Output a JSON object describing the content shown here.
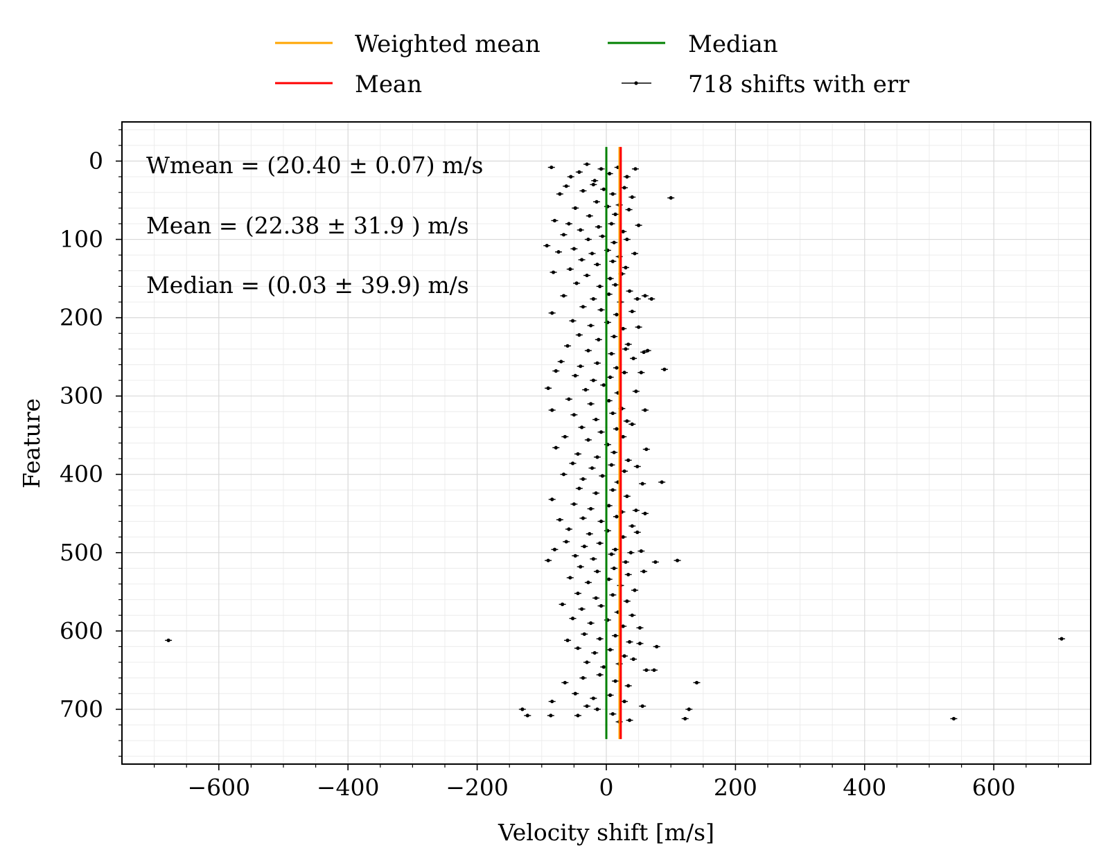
{
  "chart_data": {
    "type": "scatter",
    "xlabel": "Velocity shift [m/s]",
    "ylabel": "Feature",
    "xlim": [
      -750,
      750
    ],
    "ylim": [
      770,
      -50
    ],
    "y_inverted": true,
    "xticks": [
      -600,
      -400,
      -200,
      0,
      200,
      400,
      600
    ],
    "xtick_labels": [
      "−600",
      "−400",
      "−200",
      "0",
      "200",
      "400",
      "600"
    ],
    "yticks": [
      0,
      100,
      200,
      300,
      400,
      500,
      600,
      700
    ],
    "ytick_labels": [
      "0",
      "100",
      "200",
      "300",
      "400",
      "500",
      "600",
      "700"
    ],
    "grid": true,
    "legend_position": "top-center",
    "legend": [
      {
        "label": "Weighted mean",
        "color": "#ffa500",
        "kind": "line"
      },
      {
        "label": "Median",
        "color": "#008000",
        "kind": "line"
      },
      {
        "label": "Mean",
        "color": "#ff0000",
        "kind": "line"
      },
      {
        "label": "718 shifts with err",
        "color": "#000000",
        "kind": "errorbar"
      }
    ],
    "annotations": [
      "Wmean = (20.40 ± 0.07) m/s",
      "Mean = (22.38 ± 31.9 ) m/s",
      "Median = (0.03 ± 39.9) m/s"
    ],
    "lines": [
      {
        "name": "Weighted mean",
        "x": 20.4,
        "y_range": [
          -18,
          738
        ],
        "color": "#ffa500"
      },
      {
        "name": "Mean",
        "x": 22.38,
        "y_range": [
          -18,
          738
        ],
        "color": "#ff0000"
      },
      {
        "name": "Median",
        "x": 0.03,
        "y_range": [
          -18,
          738
        ],
        "color": "#008000"
      }
    ],
    "series": [
      {
        "name": "718 shifts with err",
        "points": [
          [
            -85,
            8
          ],
          [
            -55,
            20
          ],
          [
            -42,
            14
          ],
          [
            -30,
            4
          ],
          [
            -18,
            25
          ],
          [
            -8,
            10
          ],
          [
            5,
            16
          ],
          [
            18,
            8
          ],
          [
            32,
            20
          ],
          [
            45,
            10
          ],
          [
            -62,
            32
          ],
          [
            -36,
            38
          ],
          [
            -20,
            30
          ],
          [
            -4,
            36
          ],
          [
            10,
            42
          ],
          [
            28,
            34
          ],
          [
            40,
            46
          ],
          [
            -72,
            42
          ],
          [
            100,
            47
          ],
          [
            -15,
            52
          ],
          [
            2,
            58
          ],
          [
            20,
            56
          ],
          [
            -48,
            60
          ],
          [
            35,
            62
          ],
          [
            -26,
            70
          ],
          [
            14,
            68
          ],
          [
            -80,
            76
          ],
          [
            -58,
            80
          ],
          [
            -40,
            88
          ],
          [
            -12,
            84
          ],
          [
            8,
            80
          ],
          [
            26,
            90
          ],
          [
            50,
            82
          ],
          [
            -66,
            94
          ],
          [
            -28,
            100
          ],
          [
            -6,
            96
          ],
          [
            12,
            104
          ],
          [
            32,
            100
          ],
          [
            -92,
            108
          ],
          [
            -50,
            112
          ],
          [
            -22,
            118
          ],
          [
            2,
            114
          ],
          [
            20,
            122
          ],
          [
            44,
            118
          ],
          [
            -74,
            116
          ],
          [
            -38,
            126
          ],
          [
            -14,
            132
          ],
          [
            10,
            128
          ],
          [
            30,
            136
          ],
          [
            -56,
            138
          ],
          [
            -82,
            142
          ],
          [
            -30,
            146
          ],
          [
            6,
            150
          ],
          [
            24,
            144
          ],
          [
            -46,
            156
          ],
          [
            -10,
            160
          ],
          [
            14,
            158
          ],
          [
            36,
            166
          ],
          [
            -66,
            172
          ],
          [
            -20,
            176
          ],
          [
            4,
            170
          ],
          [
            22,
            180
          ],
          [
            48,
            176
          ],
          [
            60,
            172
          ],
          [
            70,
            176
          ],
          [
            -84,
            194
          ],
          [
            -36,
            186
          ],
          [
            -8,
            190
          ],
          [
            16,
            196
          ],
          [
            40,
            192
          ],
          [
            -52,
            204
          ],
          [
            -24,
            210
          ],
          [
            2,
            206
          ],
          [
            26,
            214
          ],
          [
            50,
            212
          ],
          [
            -42,
            222
          ],
          [
            -12,
            228
          ],
          [
            12,
            224
          ],
          [
            34,
            234
          ],
          [
            -60,
            236
          ],
          [
            -28,
            242
          ],
          [
            8,
            246
          ],
          [
            30,
            240
          ],
          [
            58,
            244
          ],
          [
            64,
            242
          ],
          [
            -70,
            256
          ],
          [
            -40,
            262
          ],
          [
            -14,
            258
          ],
          [
            16,
            264
          ],
          [
            42,
            252
          ],
          [
            -78,
            268
          ],
          [
            -48,
            274
          ],
          [
            -20,
            280
          ],
          [
            6,
            276
          ],
          [
            28,
            270
          ],
          [
            54,
            270
          ],
          [
            90,
            266
          ],
          [
            -90,
            290
          ],
          [
            -32,
            292
          ],
          [
            -4,
            286
          ],
          [
            18,
            296
          ],
          [
            46,
            294
          ],
          [
            -58,
            304
          ],
          [
            -24,
            310
          ],
          [
            4,
            306
          ],
          [
            24,
            316
          ],
          [
            -84,
            318
          ],
          [
            -50,
            324
          ],
          [
            -16,
            330
          ],
          [
            10,
            322
          ],
          [
            32,
            332
          ],
          [
            60,
            318
          ],
          [
            -38,
            340
          ],
          [
            -8,
            346
          ],
          [
            16,
            342
          ],
          [
            40,
            336
          ],
          [
            -64,
            352
          ],
          [
            -28,
            356
          ],
          [
            2,
            362
          ],
          [
            26,
            352
          ],
          [
            -78,
            366
          ],
          [
            -44,
            374
          ],
          [
            -14,
            378
          ],
          [
            12,
            372
          ],
          [
            34,
            382
          ],
          [
            62,
            368
          ],
          [
            -52,
            386
          ],
          [
            -22,
            392
          ],
          [
            8,
            388
          ],
          [
            28,
            396
          ],
          [
            48,
            390
          ],
          [
            -66,
            400
          ],
          [
            -36,
            406
          ],
          [
            -6,
            402
          ],
          [
            18,
            410
          ],
          [
            86,
            410
          ],
          [
            -42,
            418
          ],
          [
            -16,
            424
          ],
          [
            10,
            420
          ],
          [
            32,
            428
          ],
          [
            56,
            412
          ],
          [
            -84,
            432
          ],
          [
            -50,
            438
          ],
          [
            -24,
            444
          ],
          [
            4,
            440
          ],
          [
            24,
            448
          ],
          [
            46,
            446
          ],
          [
            -36,
            456
          ],
          [
            -8,
            460
          ],
          [
            16,
            454
          ],
          [
            40,
            466
          ],
          [
            60,
            450
          ],
          [
            -72,
            458
          ],
          [
            -58,
            470
          ],
          [
            -26,
            476
          ],
          [
            2,
            472
          ],
          [
            26,
            480
          ],
          [
            48,
            474
          ],
          [
            -62,
            486
          ],
          [
            -34,
            492
          ],
          [
            -10,
            488
          ],
          [
            14,
            496
          ],
          [
            38,
            500
          ],
          [
            -80,
            496
          ],
          [
            -48,
            504
          ],
          [
            -20,
            508
          ],
          [
            8,
            502
          ],
          [
            30,
            512
          ],
          [
            54,
            498
          ],
          [
            -90,
            510
          ],
          [
            -40,
            518
          ],
          [
            -14,
            524
          ],
          [
            12,
            520
          ],
          [
            34,
            528
          ],
          [
            58,
            524
          ],
          [
            76,
            512
          ],
          [
            110,
            510
          ],
          [
            -56,
            532
          ],
          [
            -28,
            538
          ],
          [
            4,
            534
          ],
          [
            22,
            542
          ],
          [
            44,
            548
          ],
          [
            -44,
            552
          ],
          [
            -16,
            558
          ],
          [
            10,
            554
          ],
          [
            32,
            562
          ],
          [
            -68,
            566
          ],
          [
            -38,
            572
          ],
          [
            -8,
            568
          ],
          [
            18,
            576
          ],
          [
            40,
            580
          ],
          [
            -52,
            584
          ],
          [
            -24,
            590
          ],
          [
            2,
            586
          ],
          [
            26,
            594
          ],
          [
            52,
            596
          ],
          [
            -34,
            604
          ],
          [
            -10,
            610
          ],
          [
            14,
            606
          ],
          [
            36,
            614
          ],
          [
            -60,
            612
          ],
          [
            -44,
            622
          ],
          [
            -18,
            628
          ],
          [
            6,
            624
          ],
          [
            28,
            632
          ],
          [
            52,
            616
          ],
          [
            78,
            620
          ],
          [
            -30,
            640
          ],
          [
            -4,
            646
          ],
          [
            20,
            642
          ],
          [
            42,
            636
          ],
          [
            62,
            650
          ],
          [
            74,
            650
          ],
          [
            -64,
            666
          ],
          [
            -36,
            660
          ],
          [
            -10,
            656
          ],
          [
            14,
            664
          ],
          [
            34,
            670
          ],
          [
            140,
            666
          ],
          [
            -48,
            680
          ],
          [
            -20,
            686
          ],
          [
            6,
            682
          ],
          [
            28,
            690
          ],
          [
            -84,
            690
          ],
          [
            -130,
            700
          ],
          [
            -122,
            708
          ],
          [
            -86,
            708
          ],
          [
            -44,
            708
          ],
          [
            -14,
            700
          ],
          [
            10,
            706
          ],
          [
            36,
            714
          ],
          [
            56,
            696
          ],
          [
            128,
            700
          ],
          [
            122,
            712
          ],
          [
            -30,
            696
          ],
          [
            20,
            716
          ],
          [
            538,
            712
          ],
          [
            705,
            610
          ],
          [
            -678,
            612
          ]
        ]
      }
    ]
  }
}
